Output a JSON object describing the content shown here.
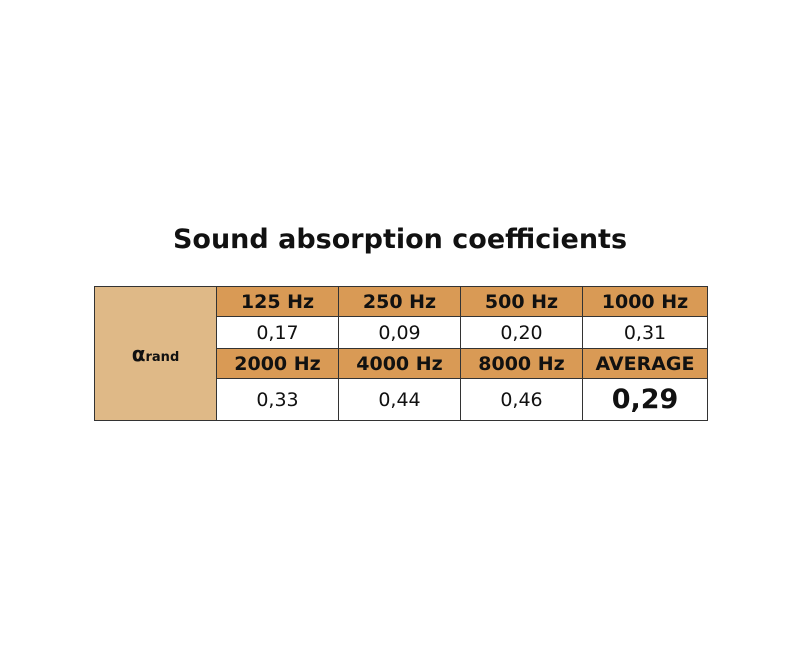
{
  "title": "Sound absorption coefficients",
  "row_label": {
    "symbol": "α",
    "subscript": "rand"
  },
  "table": {
    "rows": [
      [
        "125 Hz",
        "250 Hz",
        "500 Hz",
        "1000 Hz"
      ],
      [
        "0,17",
        "0,09",
        "0,20",
        "0,31"
      ],
      [
        "2000 Hz",
        "4000 Hz",
        "8000 Hz",
        "AVERAGE"
      ],
      [
        "0,33",
        "0,44",
        "0,46",
        "0,29"
      ]
    ]
  }
}
